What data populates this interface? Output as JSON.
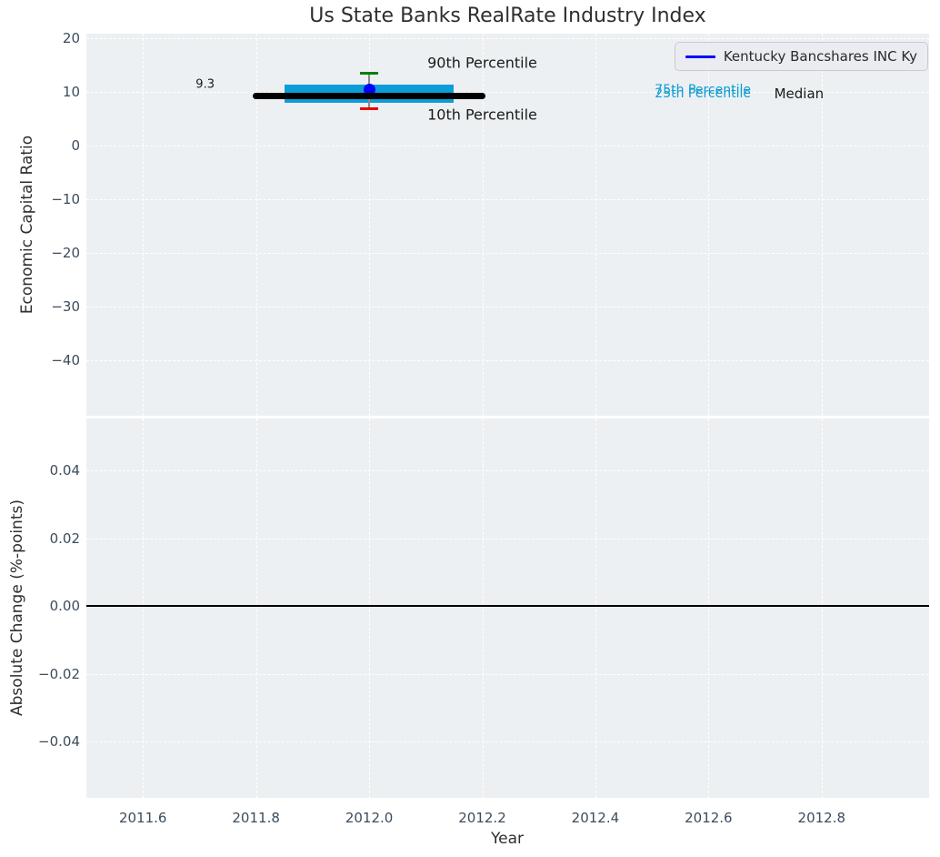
{
  "title": "Us State Banks RealRate Industry Index",
  "legend": {
    "label": "Kentucky Bancshares INC Ky",
    "line_color": "#0000ff"
  },
  "colors": {
    "plot_background": "#edf0f2",
    "grid": "#ffffff",
    "box": "#0c9dd8",
    "median": "#000000",
    "cap_90th": "#008000",
    "cap_10th": "#ee0000",
    "whisker_stem": "#8a8a8a",
    "company_marker": "#0000ff",
    "zero_line": "#000000",
    "tick_text": "#3c4c5c",
    "label_text": "#2e2e2e"
  },
  "chart_data": [
    {
      "type": "box",
      "subplot": "top",
      "title": "Us State Banks RealRate Industry Index",
      "ylabel": "Economic Capital Ratio",
      "xlim": [
        2011.5,
        2012.99
      ],
      "ylim": [
        -50.3,
        20.85
      ],
      "grid": true,
      "xticks": [
        2011.6,
        2011.8,
        2012.0,
        2012.2,
        2012.4,
        2012.6,
        2012.8
      ],
      "xtick_labels_shown": false,
      "yticks": [
        20,
        10,
        0,
        -10,
        -20,
        -30,
        -40
      ],
      "ytick_labels": [
        "20",
        "10",
        "0",
        "−10",
        "−20",
        "−30",
        "−40"
      ],
      "series": {
        "name": "Kentucky Bancshares INC Ky",
        "year": 2012.0,
        "p90": 13.4,
        "p75": 11.4,
        "median": 9.3,
        "p25": 8.0,
        "p10": 6.9,
        "company_value": 10.4,
        "median_label": "9.3",
        "box_x_range": [
          2011.85,
          2012.15
        ],
        "median_x_range": [
          2011.8,
          2012.2
        ]
      },
      "annotations": [
        {
          "text": "9.3",
          "x": 2011.71,
          "y": 11.4,
          "color": "#1a1a1a",
          "size": 13
        },
        {
          "text": "90th Percentile",
          "x": 2012.2,
          "y": 15.4,
          "color": "#1a1a1a",
          "size": 16
        },
        {
          "text": "10th Percentile",
          "x": 2012.2,
          "y": 5.7,
          "color": "#1a1a1a",
          "size": 16
        },
        {
          "text": "75th Percentile",
          "x": 2012.59,
          "y": 10.3,
          "color": "#0f9cd4",
          "size": 14
        },
        {
          "text": "25th Percentile",
          "x": 2012.59,
          "y": 9.6,
          "color": "#0f9cd4",
          "size": 14
        },
        {
          "text": "Median",
          "x": 2012.76,
          "y": 9.6,
          "color": "#1a1a1a",
          "size": 15
        }
      ],
      "legend_entries": [
        "Kentucky Bancshares INC Ky"
      ],
      "legend_position": "upper right"
    },
    {
      "type": "line",
      "subplot": "bottom",
      "xlabel": "Year",
      "ylabel": "Absolute Change (%-points)",
      "xlim": [
        2011.5,
        2012.99
      ],
      "ylim": [
        -0.0566,
        0.0553
      ],
      "grid": true,
      "xticks": [
        2011.6,
        2011.8,
        2012.0,
        2012.2,
        2012.4,
        2012.6,
        2012.8
      ],
      "xtick_labels": [
        "2011.6",
        "2011.8",
        "2012.0",
        "2012.2",
        "2012.4",
        "2012.6",
        "2012.8"
      ],
      "yticks": [
        0.04,
        0.02,
        0.0,
        -0.02,
        -0.04
      ],
      "ytick_labels": [
        "0.04",
        "0.02",
        "0.00",
        "−0.02",
        "−0.04"
      ],
      "zero_line": 0.0,
      "values": []
    }
  ]
}
